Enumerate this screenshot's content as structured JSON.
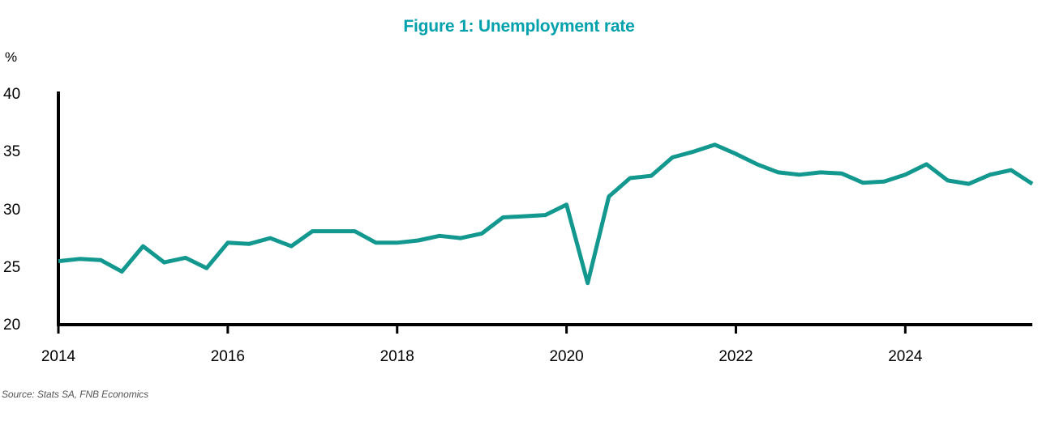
{
  "title": "Figure 1: Unemployment rate",
  "unit_label": "%",
  "source_note": "Source: Stats SA, FNB Economics",
  "colors": {
    "title": "#00A1AC",
    "line": "#12988E",
    "axis": "#000000",
    "source_text": "#555555"
  },
  "chart_data": {
    "type": "line",
    "title": "Figure 1: Unemployment rate",
    "ylabel": "%",
    "xlabel": "",
    "ylim": [
      20,
      40
    ],
    "y_ticks": [
      20,
      25,
      30,
      35,
      40
    ],
    "x_tick_labels": [
      "2014",
      "2016",
      "2018",
      "2020",
      "2022",
      "2024"
    ],
    "grid": false,
    "legend": "none",
    "frequency": "quarterly",
    "x": [
      "2014Q1",
      "2014Q2",
      "2014Q3",
      "2014Q4",
      "2015Q1",
      "2015Q2",
      "2015Q3",
      "2015Q4",
      "2016Q1",
      "2016Q2",
      "2016Q3",
      "2016Q4",
      "2017Q1",
      "2017Q2",
      "2017Q3",
      "2017Q4",
      "2018Q1",
      "2018Q2",
      "2018Q3",
      "2018Q4",
      "2019Q1",
      "2019Q2",
      "2019Q3",
      "2019Q4",
      "2020Q1",
      "2020Q2",
      "2020Q3",
      "2020Q4",
      "2021Q1",
      "2021Q2",
      "2021Q3",
      "2021Q4",
      "2022Q1",
      "2022Q2",
      "2022Q3",
      "2022Q4",
      "2023Q1",
      "2023Q2",
      "2023Q3",
      "2023Q4",
      "2024Q1",
      "2024Q2",
      "2024Q3",
      "2024Q4",
      "2025Q1",
      "2025Q2",
      "2025Q3"
    ],
    "series": [
      {
        "name": "Unemployment rate",
        "values": [
          25.5,
          25.7,
          25.6,
          24.6,
          26.8,
          25.4,
          25.8,
          24.9,
          27.1,
          27.0,
          27.5,
          26.8,
          28.1,
          28.1,
          28.1,
          27.1,
          27.1,
          27.3,
          27.7,
          27.5,
          27.9,
          29.3,
          29.4,
          29.5,
          30.4,
          23.6,
          31.1,
          32.7,
          32.9,
          34.5,
          35.0,
          35.6,
          34.8,
          33.9,
          33.2,
          33.0,
          33.2,
          33.1,
          32.3,
          32.4,
          33.0,
          33.9,
          32.5,
          32.2,
          33.0,
          33.4,
          32.2
        ]
      }
    ]
  }
}
